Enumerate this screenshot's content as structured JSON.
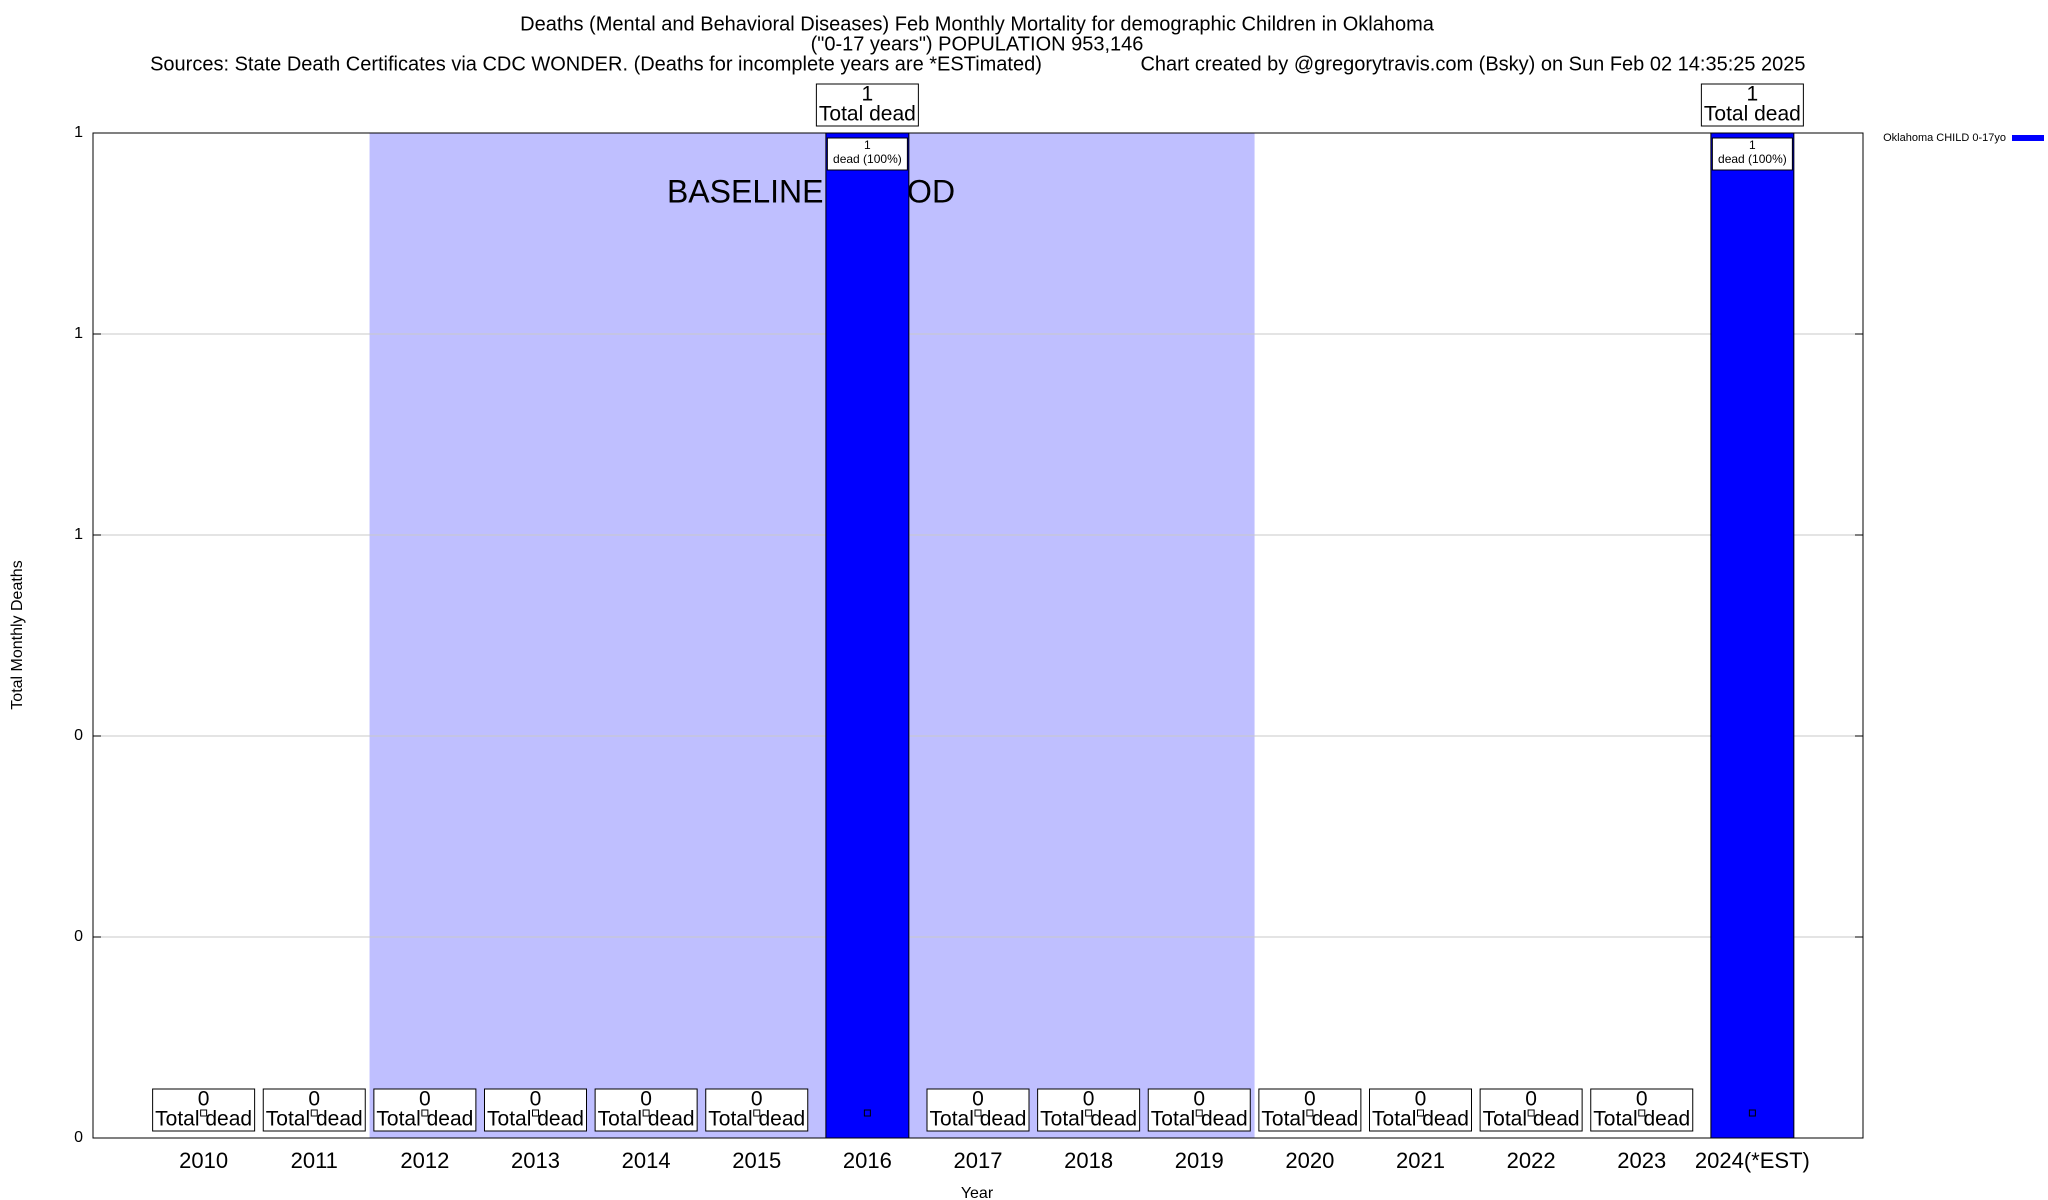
{
  "chart_data": {
    "type": "bar",
    "title": "Deaths (Mental and Behavioral Diseases) Feb Monthly Mortality for demographic Children in Oklahoma",
    "subtitle": "(\"0-17 years\") POPULATION 953,146",
    "sources": "Sources: State Death Certificates via CDC WONDER. (Deaths for incomplete years are *ESTimated)",
    "credit": "Chart created by @gregorytravis.com (Bsky) on Sun Feb 02 14:35:25 2025",
    "x_label": "Year",
    "y_label": "Total Monthly Deaths",
    "categories": [
      "2010",
      "2011",
      "2012",
      "2013",
      "2014",
      "2015",
      "2016",
      "2017",
      "2018",
      "2019",
      "2020",
      "2021",
      "2022",
      "2023",
      "2024(*EST)"
    ],
    "series": [
      {
        "name": "Oklahoma CHILD 0-17yo",
        "color": "#0000ff",
        "values": [
          0,
          0,
          0,
          0,
          0,
          0,
          1,
          0,
          0,
          0,
          0,
          0,
          0,
          0,
          1
        ]
      }
    ],
    "total_label": "Total dead",
    "inner_labels": [
      null,
      null,
      null,
      null,
      null,
      null,
      "dead (100%)",
      null,
      null,
      null,
      null,
      null,
      null,
      null,
      "dead (100%)"
    ],
    "ylim": [
      0,
      1
    ],
    "yticks": [
      0,
      {
        "value": 0.2,
        "label": "0"
      },
      {
        "value": 0.4,
        "label": "0"
      },
      {
        "value": 0.6,
        "label": "1"
      },
      {
        "value": 0.8,
        "label": "1"
      },
      1
    ],
    "grid": true,
    "legend": "top-right",
    "baseline": {
      "label": "BASELINE PERIOD",
      "start": "2012",
      "end": "2019",
      "color": "#bfbfff"
    }
  }
}
